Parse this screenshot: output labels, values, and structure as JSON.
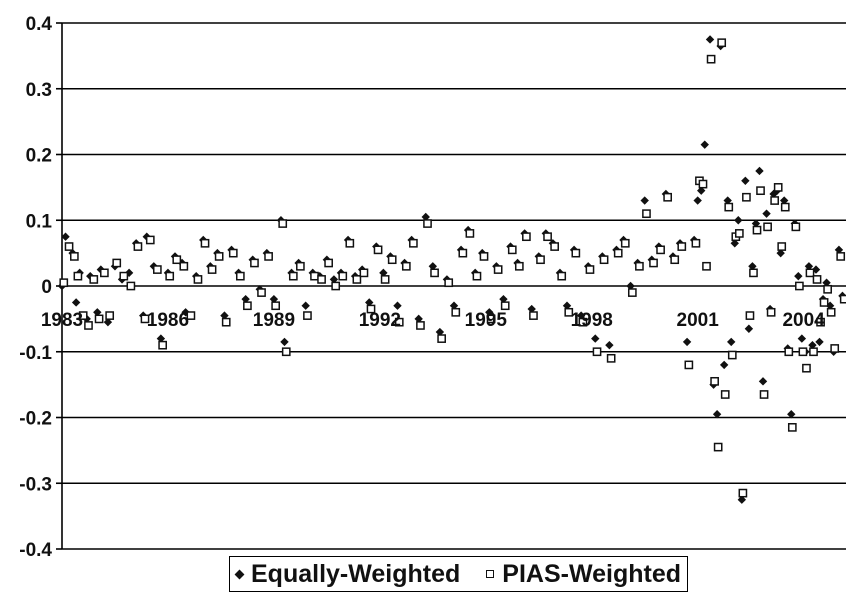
{
  "chart_data": {
    "type": "scatter",
    "title": "",
    "xlabel": "",
    "ylabel": "",
    "ylim": [
      -0.4,
      0.4
    ],
    "yticks": [
      "0.4",
      "0.3",
      "0.2",
      "0.1",
      "0",
      "-0.1",
      "-0.2",
      "-0.3",
      "-0.4"
    ],
    "ytick_values": [
      0.4,
      0.3,
      0.2,
      0.1,
      0,
      -0.1,
      -0.2,
      -0.3,
      -0.4
    ],
    "xlim": [
      1983.0,
      2005.2
    ],
    "xticks": [
      {
        "label": "1983",
        "value": 1983
      },
      {
        "label": "1986",
        "value": 1986
      },
      {
        "label": "1989",
        "value": 1989
      },
      {
        "label": "1992",
        "value": 1992
      },
      {
        "label": "1995",
        "value": 1995
      },
      {
        "label": "1998",
        "value": 1998
      },
      {
        "label": "2001",
        "value": 2001
      },
      {
        "label": "2004",
        "value": 2004
      }
    ],
    "grid": "horizontal",
    "legend_position": "bottom",
    "series": [
      {
        "name": "Equally-Weighted",
        "marker": "diamond",
        "color": "#111111",
        "points": [
          [
            1983.0,
            0.0
          ],
          [
            1983.1,
            0.075
          ],
          [
            1983.3,
            0.05
          ],
          [
            1983.4,
            -0.025
          ],
          [
            1983.5,
            0.02
          ],
          [
            1983.7,
            -0.05
          ],
          [
            1983.8,
            0.015
          ],
          [
            1984.0,
            -0.04
          ],
          [
            1984.1,
            0.025
          ],
          [
            1984.3,
            -0.055
          ],
          [
            1984.5,
            0.03
          ],
          [
            1984.7,
            0.01
          ],
          [
            1984.9,
            0.02
          ],
          [
            1985.1,
            0.065
          ],
          [
            1985.3,
            -0.045
          ],
          [
            1985.4,
            0.075
          ],
          [
            1985.6,
            0.03
          ],
          [
            1985.8,
            -0.08
          ],
          [
            1986.0,
            0.02
          ],
          [
            1986.2,
            0.045
          ],
          [
            1986.4,
            0.035
          ],
          [
            1986.5,
            -0.04
          ],
          [
            1986.8,
            0.015
          ],
          [
            1987.0,
            0.07
          ],
          [
            1987.2,
            0.03
          ],
          [
            1987.4,
            0.05
          ],
          [
            1987.6,
            -0.045
          ],
          [
            1987.8,
            0.055
          ],
          [
            1988.0,
            0.02
          ],
          [
            1988.2,
            -0.02
          ],
          [
            1988.4,
            0.04
          ],
          [
            1988.6,
            -0.005
          ],
          [
            1988.8,
            0.05
          ],
          [
            1989.0,
            -0.02
          ],
          [
            1989.2,
            0.1
          ],
          [
            1989.3,
            -0.085
          ],
          [
            1989.5,
            0.02
          ],
          [
            1989.7,
            0.035
          ],
          [
            1989.9,
            -0.03
          ],
          [
            1990.1,
            0.02
          ],
          [
            1990.3,
            0.015
          ],
          [
            1990.5,
            0.04
          ],
          [
            1990.7,
            0.01
          ],
          [
            1990.9,
            0.02
          ],
          [
            1991.1,
            0.07
          ],
          [
            1991.3,
            0.015
          ],
          [
            1991.5,
            0.025
          ],
          [
            1991.7,
            -0.025
          ],
          [
            1991.9,
            0.06
          ],
          [
            1992.1,
            0.02
          ],
          [
            1992.3,
            0.045
          ],
          [
            1992.5,
            -0.03
          ],
          [
            1992.7,
            0.035
          ],
          [
            1992.9,
            0.07
          ],
          [
            1993.1,
            -0.05
          ],
          [
            1993.3,
            0.105
          ],
          [
            1993.5,
            0.03
          ],
          [
            1993.7,
            -0.07
          ],
          [
            1993.9,
            0.01
          ],
          [
            1994.1,
            -0.03
          ],
          [
            1994.3,
            0.055
          ],
          [
            1994.5,
            0.085
          ],
          [
            1994.7,
            0.02
          ],
          [
            1994.9,
            0.05
          ],
          [
            1995.1,
            -0.04
          ],
          [
            1995.3,
            0.03
          ],
          [
            1995.5,
            -0.02
          ],
          [
            1995.7,
            0.06
          ],
          [
            1995.9,
            0.035
          ],
          [
            1996.1,
            0.08
          ],
          [
            1996.3,
            -0.035
          ],
          [
            1996.5,
            0.045
          ],
          [
            1996.7,
            0.08
          ],
          [
            1996.9,
            0.065
          ],
          [
            1997.1,
            0.02
          ],
          [
            1997.3,
            -0.03
          ],
          [
            1997.5,
            0.055
          ],
          [
            1997.7,
            -0.045
          ],
          [
            1997.9,
            0.03
          ],
          [
            1998.1,
            -0.08
          ],
          [
            1998.3,
            0.045
          ],
          [
            1998.5,
            -0.09
          ],
          [
            1998.7,
            0.055
          ],
          [
            1998.9,
            0.07
          ],
          [
            1999.1,
            0.0
          ],
          [
            1999.3,
            0.035
          ],
          [
            1999.5,
            0.13
          ],
          [
            1999.7,
            0.04
          ],
          [
            1999.9,
            0.06
          ],
          [
            2000.1,
            0.14
          ],
          [
            2000.3,
            0.045
          ],
          [
            2000.5,
            0.065
          ],
          [
            2000.7,
            -0.085
          ],
          [
            2000.9,
            0.07
          ],
          [
            2001.0,
            0.13
          ],
          [
            2001.1,
            0.145
          ],
          [
            2001.2,
            0.215
          ],
          [
            2001.35,
            0.375
          ],
          [
            2001.45,
            -0.15
          ],
          [
            2001.55,
            -0.195
          ],
          [
            2001.65,
            0.365
          ],
          [
            2001.75,
            -0.12
          ],
          [
            2001.85,
            0.13
          ],
          [
            2001.95,
            -0.085
          ],
          [
            2002.05,
            0.065
          ],
          [
            2002.15,
            0.1
          ],
          [
            2002.25,
            -0.325
          ],
          [
            2002.35,
            0.16
          ],
          [
            2002.45,
            -0.065
          ],
          [
            2002.55,
            0.03
          ],
          [
            2002.65,
            0.095
          ],
          [
            2002.75,
            0.175
          ],
          [
            2002.85,
            -0.145
          ],
          [
            2002.95,
            0.11
          ],
          [
            2003.05,
            -0.035
          ],
          [
            2003.15,
            0.14
          ],
          [
            2003.25,
            0.145
          ],
          [
            2003.35,
            0.05
          ],
          [
            2003.45,
            0.13
          ],
          [
            2003.55,
            -0.095
          ],
          [
            2003.65,
            -0.195
          ],
          [
            2003.75,
            0.095
          ],
          [
            2003.85,
            0.015
          ],
          [
            2003.95,
            -0.08
          ],
          [
            2004.05,
            -0.1
          ],
          [
            2004.15,
            0.03
          ],
          [
            2004.25,
            -0.09
          ],
          [
            2004.35,
            0.025
          ],
          [
            2004.45,
            -0.085
          ],
          [
            2004.55,
            -0.02
          ],
          [
            2004.65,
            0.005
          ],
          [
            2004.75,
            -0.03
          ],
          [
            2004.85,
            -0.1
          ],
          [
            2005.0,
            0.055
          ],
          [
            2005.1,
            -0.015
          ]
        ]
      },
      {
        "name": "PIAS-Weighted",
        "marker": "square",
        "color": "#111111",
        "points": [
          [
            1983.05,
            0.005
          ],
          [
            1983.2,
            0.06
          ],
          [
            1983.35,
            0.045
          ],
          [
            1983.45,
            0.015
          ],
          [
            1983.6,
            -0.045
          ],
          [
            1983.75,
            -0.06
          ],
          [
            1983.9,
            0.01
          ],
          [
            1984.05,
            -0.05
          ],
          [
            1984.2,
            0.02
          ],
          [
            1984.35,
            -0.045
          ],
          [
            1984.55,
            0.035
          ],
          [
            1984.75,
            0.015
          ],
          [
            1984.95,
            0.0
          ],
          [
            1985.15,
            0.06
          ],
          [
            1985.35,
            -0.05
          ],
          [
            1985.5,
            0.07
          ],
          [
            1985.7,
            0.025
          ],
          [
            1985.85,
            -0.09
          ],
          [
            1986.05,
            0.015
          ],
          [
            1986.25,
            0.04
          ],
          [
            1986.45,
            0.03
          ],
          [
            1986.65,
            -0.045
          ],
          [
            1986.85,
            0.01
          ],
          [
            1987.05,
            0.065
          ],
          [
            1987.25,
            0.025
          ],
          [
            1987.45,
            0.045
          ],
          [
            1987.65,
            -0.055
          ],
          [
            1987.85,
            0.05
          ],
          [
            1988.05,
            0.015
          ],
          [
            1988.25,
            -0.03
          ],
          [
            1988.45,
            0.035
          ],
          [
            1988.65,
            -0.01
          ],
          [
            1988.85,
            0.045
          ],
          [
            1989.05,
            -0.03
          ],
          [
            1989.25,
            0.095
          ],
          [
            1989.35,
            -0.1
          ],
          [
            1989.55,
            0.015
          ],
          [
            1989.75,
            0.03
          ],
          [
            1989.95,
            -0.045
          ],
          [
            1990.15,
            0.015
          ],
          [
            1990.35,
            0.01
          ],
          [
            1990.55,
            0.035
          ],
          [
            1990.75,
            0.0
          ],
          [
            1990.95,
            0.015
          ],
          [
            1991.15,
            0.065
          ],
          [
            1991.35,
            0.01
          ],
          [
            1991.55,
            0.02
          ],
          [
            1991.75,
            -0.035
          ],
          [
            1991.95,
            0.055
          ],
          [
            1992.15,
            0.01
          ],
          [
            1992.35,
            0.04
          ],
          [
            1992.55,
            -0.055
          ],
          [
            1992.75,
            0.03
          ],
          [
            1992.95,
            0.065
          ],
          [
            1993.15,
            -0.06
          ],
          [
            1993.35,
            0.095
          ],
          [
            1993.55,
            0.02
          ],
          [
            1993.75,
            -0.08
          ],
          [
            1993.95,
            0.005
          ],
          [
            1994.15,
            -0.04
          ],
          [
            1994.35,
            0.05
          ],
          [
            1994.55,
            0.08
          ],
          [
            1994.75,
            0.015
          ],
          [
            1994.95,
            0.045
          ],
          [
            1995.15,
            -0.05
          ],
          [
            1995.35,
            0.025
          ],
          [
            1995.55,
            -0.03
          ],
          [
            1995.75,
            0.055
          ],
          [
            1995.95,
            0.03
          ],
          [
            1996.15,
            0.075
          ],
          [
            1996.35,
            -0.045
          ],
          [
            1996.55,
            0.04
          ],
          [
            1996.75,
            0.075
          ],
          [
            1996.95,
            0.06
          ],
          [
            1997.15,
            0.015
          ],
          [
            1997.35,
            -0.04
          ],
          [
            1997.55,
            0.05
          ],
          [
            1997.75,
            -0.055
          ],
          [
            1997.95,
            0.025
          ],
          [
            1998.15,
            -0.1
          ],
          [
            1998.35,
            0.04
          ],
          [
            1998.55,
            -0.11
          ],
          [
            1998.75,
            0.05
          ],
          [
            1998.95,
            0.065
          ],
          [
            1999.15,
            -0.01
          ],
          [
            1999.35,
            0.03
          ],
          [
            1999.55,
            0.11
          ],
          [
            1999.75,
            0.035
          ],
          [
            1999.95,
            0.055
          ],
          [
            2000.15,
            0.135
          ],
          [
            2000.35,
            0.04
          ],
          [
            2000.55,
            0.06
          ],
          [
            2000.75,
            -0.12
          ],
          [
            2000.95,
            0.065
          ],
          [
            2001.05,
            0.16
          ],
          [
            2001.15,
            0.155
          ],
          [
            2001.25,
            0.03
          ],
          [
            2001.38,
            0.345
          ],
          [
            2001.48,
            -0.145
          ],
          [
            2001.58,
            -0.245
          ],
          [
            2001.68,
            0.37
          ],
          [
            2001.78,
            -0.165
          ],
          [
            2001.88,
            0.12
          ],
          [
            2001.98,
            -0.105
          ],
          [
            2002.08,
            0.075
          ],
          [
            2002.18,
            0.08
          ],
          [
            2002.28,
            -0.315
          ],
          [
            2002.38,
            0.135
          ],
          [
            2002.48,
            -0.045
          ],
          [
            2002.58,
            0.02
          ],
          [
            2002.68,
            0.085
          ],
          [
            2002.78,
            0.145
          ],
          [
            2002.88,
            -0.165
          ],
          [
            2002.98,
            0.09
          ],
          [
            2003.08,
            -0.04
          ],
          [
            2003.18,
            0.13
          ],
          [
            2003.28,
            0.15
          ],
          [
            2003.38,
            0.06
          ],
          [
            2003.48,
            0.12
          ],
          [
            2003.58,
            -0.1
          ],
          [
            2003.68,
            -0.215
          ],
          [
            2003.78,
            0.09
          ],
          [
            2003.88,
            0.0
          ],
          [
            2003.98,
            -0.1
          ],
          [
            2004.08,
            -0.125
          ],
          [
            2004.18,
            0.02
          ],
          [
            2004.28,
            -0.1
          ],
          [
            2004.38,
            0.01
          ],
          [
            2004.48,
            -0.055
          ],
          [
            2004.58,
            -0.025
          ],
          [
            2004.68,
            -0.005
          ],
          [
            2004.78,
            -0.04
          ],
          [
            2004.88,
            -0.095
          ],
          [
            2005.05,
            0.045
          ],
          [
            2005.15,
            -0.02
          ]
        ]
      }
    ]
  },
  "legend": {
    "items": [
      {
        "label": "Equally-Weighted",
        "marker": "diamond"
      },
      {
        "label": "PIAS-Weighted",
        "marker": "square"
      }
    ]
  }
}
